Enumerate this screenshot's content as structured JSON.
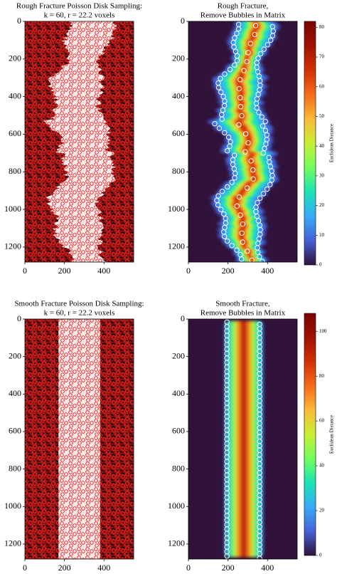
{
  "chart_data": [
    {
      "type": "image",
      "title": "Rough Fracture Poisson Disk Sampling:",
      "subtitle": "k = 60, r = 22.2 voxels",
      "render": "samples",
      "fracture": "rough",
      "xlim": [
        0,
        550
      ],
      "ylim": [
        0,
        1280
      ],
      "y_inverted": true,
      "xticks": [
        0,
        200,
        400
      ],
      "yticks": [
        0,
        200,
        400,
        600,
        800,
        1000,
        1200
      ]
    },
    {
      "type": "image",
      "title": "Rough Fracture,",
      "subtitle": "Remove Bubbles in Matrix",
      "render": "distance",
      "fracture": "rough",
      "xlim": [
        0,
        550
      ],
      "ylim": [
        0,
        1280
      ],
      "y_inverted": true,
      "xticks": [
        0,
        200,
        400
      ],
      "yticks": [
        0,
        200,
        400,
        600,
        800,
        1000,
        1200
      ],
      "colorbar": {
        "label": "Euclidean Distance",
        "colormap": "turbo",
        "lim": [
          0,
          82
        ],
        "ticks": [
          0,
          10,
          20,
          30,
          40,
          50,
          60,
          70,
          80
        ]
      }
    },
    {
      "type": "image",
      "title": "Smooth Fracture Poisson Disk Sampling:",
      "subtitle": "k = 60, r = 22.2 voxels",
      "render": "samples",
      "fracture": "smooth",
      "xlim": [
        0,
        550
      ],
      "ylim": [
        0,
        1280
      ],
      "y_inverted": true,
      "xticks": [
        0,
        200,
        400
      ],
      "yticks": [
        0,
        200,
        400,
        600,
        800,
        1000,
        1200
      ]
    },
    {
      "type": "image",
      "title": "Smooth Fracture,",
      "subtitle": "Remove Bubbles in Matrix",
      "render": "distance",
      "fracture": "smooth",
      "xlim": [
        0,
        550
      ],
      "ylim": [
        0,
        1280
      ],
      "y_inverted": true,
      "xticks": [
        0,
        200,
        400
      ],
      "yticks": [
        0,
        200,
        400,
        600,
        800,
        1000,
        1200
      ],
      "colorbar": {
        "label": "Euclidean Distance",
        "colormap": "turbo",
        "lim": [
          0,
          108
        ],
        "ticks": [
          0,
          20,
          40,
          60,
          80,
          100
        ]
      }
    }
  ]
}
